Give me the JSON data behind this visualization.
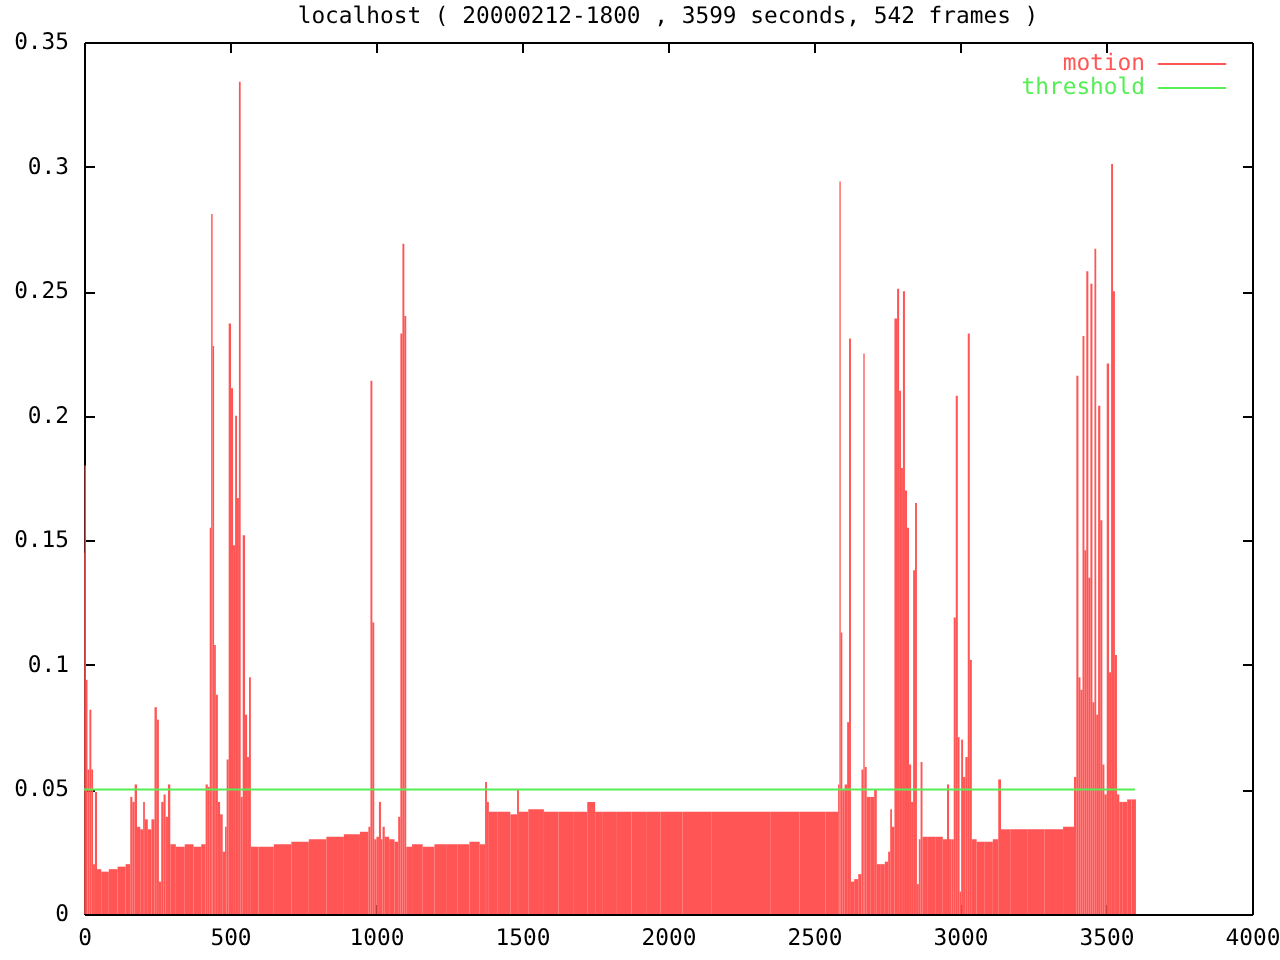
{
  "chart_data": {
    "type": "bar",
    "title": "localhost ( 20000212-1800 , 3599 seconds, 542 frames )",
    "series": [
      {
        "name": "motion",
        "color": "#ff5555",
        "x": [
          0,
          4,
          9,
          15,
          22,
          28,
          34,
          41,
          48,
          70,
          100,
          130,
          155,
          162,
          169,
          178,
          185,
          200,
          205,
          212,
          225,
          237,
          246,
          253,
          260,
          269,
          276,
          283,
          292,
          299,
          330,
          360,
          390,
          413,
          420,
          428,
          433,
          438,
          443,
          448,
          455,
          462,
          470,
          480,
          486,
          491,
          500,
          507,
          514,
          521,
          527,
          534,
          539,
          548,
          555,
          562,
          568,
          575,
          620,
          680,
          740,
          800,
          860,
          920,
          970,
          978,
          984,
          991,
          997,
          1006,
          1014,
          1020,
          1025,
          1035,
          1055,
          1072,
          1080,
          1087,
          1094,
          1100,
          1107,
          1140,
          1180,
          1220,
          1260,
          1300,
          1340,
          1370,
          1377,
          1383,
          1390,
          1440,
          1480,
          1486,
          1493,
          1550,
          1600,
          1650,
          1700,
          1747,
          1754,
          1800,
          1850,
          1900,
          1950,
          2000,
          2100,
          2200,
          2300,
          2400,
          2500,
          2580,
          2585,
          2589,
          2594,
          2600,
          2610,
          2617,
          2623,
          2630,
          2645,
          2658,
          2667,
          2671,
          2676,
          2685,
          2700,
          2712,
          2718,
          2735,
          2750,
          2758,
          2764,
          2770,
          2781,
          2788,
          2795,
          2801,
          2808,
          2815,
          2822,
          2829,
          2836,
          2843,
          2849,
          2856,
          2862,
          2868,
          2875,
          2900,
          2930,
          2952,
          2959,
          2966,
          2975,
          2982,
          2989,
          2996,
          3001,
          3007,
          3014,
          3023,
          3030,
          3037,
          3044,
          3070,
          3100,
          3125,
          3137,
          3144,
          3200,
          3260,
          3320,
          3386,
          3395,
          3402,
          3409,
          3416,
          3423,
          3429,
          3436,
          3443,
          3450,
          3457,
          3464,
          3469,
          3477,
          3484,
          3491,
          3498,
          3507,
          3514,
          3521,
          3527,
          3534,
          3541,
          3550,
          3565,
          3580,
          3595
        ],
        "values": [
          0.145,
          0.18,
          0.094,
          0.058,
          0.082,
          0.058,
          0.02,
          0.049,
          0.018,
          0.017,
          0.018,
          0.019,
          0.02,
          0.047,
          0.045,
          0.052,
          0.035,
          0.034,
          0.045,
          0.038,
          0.034,
          0.038,
          0.083,
          0.078,
          0.013,
          0.045,
          0.048,
          0.039,
          0.052,
          0.028,
          0.027,
          0.028,
          0.027,
          0.028,
          0.052,
          0.051,
          0.155,
          0.281,
          0.228,
          0.108,
          0.088,
          0.045,
          0.04,
          0.025,
          0.035,
          0.062,
          0.237,
          0.211,
          0.148,
          0.2,
          0.167,
          0.334,
          0.047,
          0.152,
          0.08,
          0.063,
          0.095,
          0.027,
          0.027,
          0.028,
          0.029,
          0.03,
          0.031,
          0.032,
          0.033,
          0.035,
          0.214,
          0.117,
          0.03,
          0.031,
          0.045,
          0.03,
          0.035,
          0.031,
          0.03,
          0.029,
          0.039,
          0.233,
          0.269,
          0.24,
          0.027,
          0.028,
          0.027,
          0.028,
          0.028,
          0.028,
          0.029,
          0.028,
          0.053,
          0.045,
          0.041,
          0.041,
          0.04,
          0.05,
          0.041,
          0.042,
          0.041,
          0.041,
          0.041,
          0.045,
          0.041,
          0.041,
          0.041,
          0.041,
          0.041,
          0.041,
          0.041,
          0.041,
          0.041,
          0.041,
          0.041,
          0.041,
          0.052,
          0.294,
          0.113,
          0.05,
          0.052,
          0.077,
          0.231,
          0.013,
          0.014,
          0.016,
          0.058,
          0.225,
          0.059,
          0.047,
          0.047,
          0.05,
          0.02,
          0.02,
          0.021,
          0.025,
          0.042,
          0.035,
          0.239,
          0.251,
          0.21,
          0.179,
          0.25,
          0.17,
          0.155,
          0.06,
          0.045,
          0.138,
          0.165,
          0.012,
          0.03,
          0.061,
          0.031,
          0.031,
          0.031,
          0.03,
          0.052,
          0.03,
          0.03,
          0.119,
          0.208,
          0.071,
          0.009,
          0.07,
          0.055,
          0.063,
          0.233,
          0.102,
          0.03,
          0.029,
          0.029,
          0.03,
          0.054,
          0.034,
          0.034,
          0.034,
          0.034,
          0.035,
          0.055,
          0.216,
          0.095,
          0.09,
          0.232,
          0.146,
          0.258,
          0.135,
          0.253,
          0.085,
          0.267,
          0.08,
          0.204,
          0.158,
          0.06,
          0.048,
          0.221,
          0.097,
          0.301,
          0.25,
          0.104,
          0.048,
          0.045,
          0.045,
          0.046,
          0.046
        ]
      },
      {
        "name": "threshold",
        "type": "line",
        "color": "#55ee55",
        "x": [
          0,
          3599
        ],
        "values": [
          0.05,
          0.05
        ]
      }
    ],
    "xlim": [
      0,
      4000
    ],
    "xticks": [
      0,
      500,
      1000,
      1500,
      2000,
      2500,
      3000,
      3500,
      4000
    ],
    "ylim": [
      0,
      0.35
    ],
    "yticks": [
      0,
      0.05,
      0.1,
      0.15,
      0.2,
      0.25,
      0.3,
      0.35
    ],
    "grid": false,
    "legend": "top right"
  }
}
